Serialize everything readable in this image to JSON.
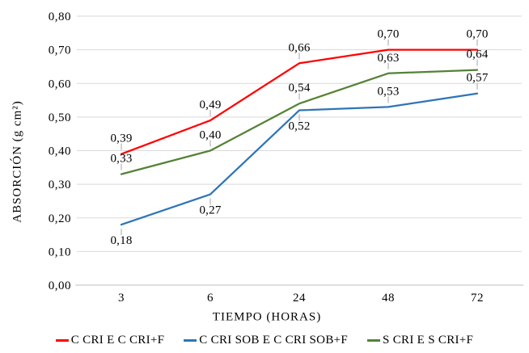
{
  "chart_data": {
    "type": "line",
    "title": "",
    "xlabel": "TIEMPO (HORAS)",
    "ylabel": "ABSORCIÓN (g cm²)",
    "categories": [
      "3",
      "6",
      "24",
      "48",
      "72"
    ],
    "y_ticks": [
      "0,00",
      "0,10",
      "0,20",
      "0,30",
      "0,40",
      "0,50",
      "0,60",
      "0,70",
      "0,80"
    ],
    "ylim": [
      0,
      0.8
    ],
    "y_tick_step": 0.1,
    "decimal_separator": ",",
    "grid": "horizontal",
    "legend_position": "bottom",
    "series": [
      {
        "name": "C CRI E C CRI+F",
        "color": "#FF0000",
        "values": [
          0.39,
          0.49,
          0.66,
          0.7,
          0.7
        ],
        "labels": [
          "0,39",
          "0,49",
          "0,66",
          "0,70",
          "0,70"
        ],
        "label_positions": [
          "above",
          "above",
          "above",
          "above",
          "above"
        ]
      },
      {
        "name": "C CRI SOB E C CRI SOB+F",
        "color": "#2E75B6",
        "values": [
          0.18,
          0.27,
          0.52,
          0.53,
          0.57
        ],
        "labels": [
          "0,18",
          "0,27",
          "0,52",
          "0,53",
          "0,57"
        ],
        "label_positions": [
          "below",
          "below",
          "below",
          "above",
          "above"
        ]
      },
      {
        "name": "S CRI E S CRI+F",
        "color": "#548235",
        "values": [
          0.33,
          0.4,
          0.54,
          0.63,
          0.64
        ],
        "labels": [
          "0,33",
          "0,40",
          "0,54",
          "0,63",
          "0,64"
        ],
        "label_positions": [
          "above",
          "above",
          "above",
          "above",
          "above"
        ]
      }
    ],
    "colors": {
      "gridline": "#D9D9D9",
      "axis_line": "#BFBFBF",
      "leader_line": "#A6A6A6",
      "text": "#000000",
      "background": "#FFFFFF"
    }
  }
}
